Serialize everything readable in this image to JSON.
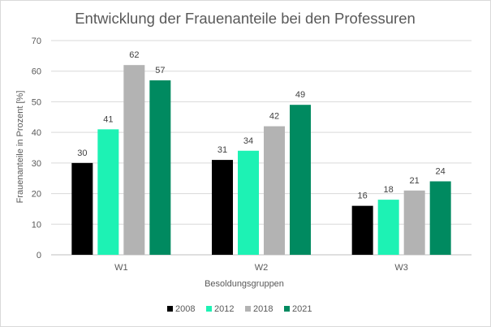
{
  "chart_data": {
    "type": "bar",
    "title": "Entwicklung der Frauenanteile bei den Professuren",
    "xlabel": "Besoldungsgruppen",
    "ylabel": "Frauenanteile in Prozent [%]",
    "categories": [
      "W1",
      "W2",
      "W3"
    ],
    "ylim": [
      0,
      70
    ],
    "yticks": [
      0,
      10,
      20,
      30,
      40,
      50,
      60,
      70
    ],
    "grid": true,
    "legend_position": "bottom",
    "series": [
      {
        "name": "2008",
        "values": [
          30,
          31,
          16
        ],
        "color": "#000000"
      },
      {
        "name": "2012",
        "values": [
          41,
          34,
          18
        ],
        "color": "#1df2b4"
      },
      {
        "name": "2018",
        "values": [
          62,
          42,
          21
        ],
        "color": "#b3b3b3"
      },
      {
        "name": "2021",
        "values": [
          57,
          49,
          24
        ],
        "color": "#008a60"
      }
    ]
  }
}
